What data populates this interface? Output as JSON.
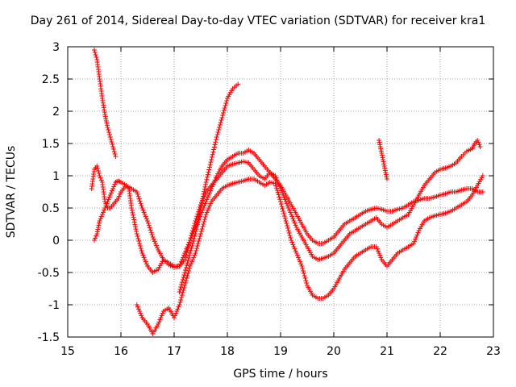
{
  "chart_data": {
    "type": "scatter",
    "title": "Day 261 of 2014, Sidereal Day-to-day VTEC variation (SDTVAR) for receiver kra1",
    "xlabel": "GPS time / hours",
    "ylabel": "SDTVAR / TECUs",
    "xlim": [
      15,
      23
    ],
    "ylim": [
      -1.5,
      3
    ],
    "xticks": [
      "15",
      "16",
      "17",
      "18",
      "19",
      "20",
      "21",
      "22",
      "23"
    ],
    "yticks": [
      "-1.5",
      "-1",
      "-0.5",
      "0",
      "0.5",
      "1",
      "1.5",
      "2",
      "2.5",
      "3"
    ],
    "xtick_values": [
      15,
      16,
      17,
      18,
      19,
      20,
      21,
      22,
      23
    ],
    "ytick_values": [
      -1.5,
      -1,
      -0.5,
      0,
      0.5,
      1,
      1.5,
      2,
      2.5,
      3
    ],
    "grid": true,
    "marker": "+",
    "color": "#ff0000",
    "series": [
      {
        "name": "track-1",
        "points": [
          [
            15.5,
            2.95
          ],
          [
            15.55,
            2.8
          ],
          [
            15.6,
            2.5
          ],
          [
            15.65,
            2.2
          ],
          [
            15.7,
            1.95
          ],
          [
            15.75,
            1.75
          ],
          [
            15.8,
            1.6
          ],
          [
            15.85,
            1.45
          ],
          [
            15.9,
            1.3
          ]
        ]
      },
      {
        "name": "track-2",
        "points": [
          [
            15.5,
            0.0
          ],
          [
            15.55,
            0.1
          ],
          [
            15.6,
            0.3
          ],
          [
            15.65,
            0.4
          ],
          [
            15.7,
            0.5
          ],
          [
            15.75,
            0.6
          ],
          [
            15.8,
            0.7
          ],
          [
            15.85,
            0.8
          ],
          [
            15.9,
            0.9
          ],
          [
            15.95,
            0.92
          ],
          [
            16.0,
            0.9
          ],
          [
            16.1,
            0.85
          ],
          [
            16.15,
            0.8
          ],
          [
            16.2,
            0.5
          ],
          [
            16.3,
            0.1
          ],
          [
            16.4,
            -0.2
          ],
          [
            16.5,
            -0.4
          ],
          [
            16.6,
            -0.5
          ],
          [
            16.7,
            -0.45
          ],
          [
            16.8,
            -0.3
          ],
          [
            16.9,
            -0.35
          ],
          [
            17.0,
            -0.4
          ],
          [
            17.1,
            -0.4
          ],
          [
            17.2,
            -0.3
          ],
          [
            17.3,
            0.0
          ],
          [
            17.4,
            0.3
          ],
          [
            17.5,
            0.55
          ],
          [
            17.6,
            0.75
          ],
          [
            17.7,
            0.85
          ],
          [
            17.8,
            0.95
          ],
          [
            17.9,
            1.05
          ],
          [
            18.0,
            1.15
          ],
          [
            18.1,
            1.18
          ],
          [
            18.2,
            1.2
          ],
          [
            18.3,
            1.22
          ],
          [
            18.4,
            1.2
          ],
          [
            18.5,
            1.1
          ],
          [
            18.6,
            1.0
          ],
          [
            18.7,
            0.95
          ],
          [
            18.8,
            1.05
          ],
          [
            18.9,
            1.0
          ],
          [
            19.0,
            0.8
          ],
          [
            19.1,
            0.6
          ],
          [
            19.2,
            0.4
          ],
          [
            19.3,
            0.2
          ],
          [
            19.4,
            0.05
          ],
          [
            19.5,
            -0.1
          ],
          [
            19.6,
            -0.25
          ],
          [
            19.7,
            -0.3
          ],
          [
            19.8,
            -0.28
          ],
          [
            19.9,
            -0.25
          ],
          [
            20.0,
            -0.2
          ],
          [
            20.1,
            -0.1
          ],
          [
            20.2,
            0.0
          ],
          [
            20.3,
            0.1
          ],
          [
            20.4,
            0.15
          ],
          [
            20.5,
            0.2
          ],
          [
            20.6,
            0.25
          ],
          [
            20.7,
            0.3
          ],
          [
            20.8,
            0.35
          ],
          [
            20.9,
            0.25
          ],
          [
            21.0,
            0.2
          ],
          [
            21.1,
            0.25
          ],
          [
            21.2,
            0.3
          ],
          [
            21.3,
            0.35
          ],
          [
            21.4,
            0.4
          ],
          [
            21.5,
            0.55
          ],
          [
            21.6,
            0.7
          ],
          [
            21.7,
            0.85
          ],
          [
            21.8,
            0.95
          ],
          [
            21.9,
            1.05
          ],
          [
            22.0,
            1.1
          ],
          [
            22.1,
            1.12
          ],
          [
            22.2,
            1.15
          ],
          [
            22.3,
            1.2
          ],
          [
            22.4,
            1.3
          ],
          [
            22.5,
            1.38
          ],
          [
            22.6,
            1.42
          ],
          [
            22.65,
            1.5
          ],
          [
            22.7,
            1.55
          ],
          [
            22.75,
            1.45
          ]
        ]
      },
      {
        "name": "track-3",
        "points": [
          [
            15.45,
            0.8
          ],
          [
            15.5,
            1.1
          ],
          [
            15.55,
            1.15
          ],
          [
            15.6,
            1.0
          ],
          [
            15.65,
            0.9
          ],
          [
            15.7,
            0.6
          ],
          [
            15.75,
            0.5
          ],
          [
            15.8,
            0.5
          ],
          [
            15.85,
            0.55
          ],
          [
            15.9,
            0.6
          ],
          [
            15.95,
            0.65
          ],
          [
            16.0,
            0.75
          ],
          [
            16.1,
            0.85
          ],
          [
            16.2,
            0.8
          ],
          [
            16.3,
            0.75
          ],
          [
            16.4,
            0.5
          ],
          [
            16.5,
            0.3
          ],
          [
            16.6,
            0.05
          ],
          [
            16.7,
            -0.15
          ],
          [
            16.8,
            -0.3
          ],
          [
            16.9,
            -0.38
          ],
          [
            17.0,
            -0.42
          ],
          [
            17.1,
            -0.4
          ],
          [
            17.2,
            -0.2
          ],
          [
            17.3,
            0.0
          ],
          [
            17.4,
            0.2
          ],
          [
            17.5,
            0.4
          ],
          [
            17.6,
            0.6
          ],
          [
            17.7,
            0.8
          ],
          [
            17.8,
            1.0
          ],
          [
            17.9,
            1.15
          ],
          [
            18.0,
            1.25
          ],
          [
            18.1,
            1.3
          ],
          [
            18.2,
            1.35
          ],
          [
            18.3,
            1.35
          ],
          [
            18.4,
            1.4
          ],
          [
            18.5,
            1.35
          ],
          [
            18.6,
            1.25
          ],
          [
            18.7,
            1.15
          ],
          [
            18.8,
            1.05
          ],
          [
            18.9,
            0.95
          ],
          [
            19.0,
            0.85
          ],
          [
            19.1,
            0.7
          ],
          [
            19.2,
            0.55
          ],
          [
            19.3,
            0.4
          ],
          [
            19.4,
            0.25
          ],
          [
            19.5,
            0.1
          ],
          [
            19.6,
            0.0
          ],
          [
            19.7,
            -0.05
          ],
          [
            19.8,
            -0.05
          ],
          [
            19.9,
            0.0
          ],
          [
            20.0,
            0.05
          ],
          [
            20.1,
            0.15
          ],
          [
            20.2,
            0.25
          ],
          [
            20.3,
            0.3
          ],
          [
            20.4,
            0.35
          ],
          [
            20.5,
            0.4
          ],
          [
            20.6,
            0.45
          ],
          [
            20.7,
            0.48
          ],
          [
            20.8,
            0.5
          ],
          [
            20.9,
            0.48
          ],
          [
            21.0,
            0.45
          ],
          [
            21.1,
            0.45
          ],
          [
            21.2,
            0.48
          ],
          [
            21.3,
            0.5
          ],
          [
            21.4,
            0.55
          ],
          [
            21.5,
            0.6
          ],
          [
            21.6,
            0.62
          ],
          [
            21.7,
            0.65
          ],
          [
            21.8,
            0.65
          ],
          [
            21.9,
            0.67
          ],
          [
            22.0,
            0.7
          ],
          [
            22.1,
            0.72
          ],
          [
            22.2,
            0.75
          ],
          [
            22.3,
            0.75
          ],
          [
            22.4,
            0.78
          ],
          [
            22.5,
            0.8
          ],
          [
            22.6,
            0.8
          ],
          [
            22.7,
            0.75
          ],
          [
            22.8,
            0.75
          ]
        ]
      },
      {
        "name": "track-4",
        "points": [
          [
            16.3,
            -1.0
          ],
          [
            16.4,
            -1.2
          ],
          [
            16.5,
            -1.3
          ],
          [
            16.6,
            -1.45
          ],
          [
            16.7,
            -1.3
          ],
          [
            16.8,
            -1.1
          ],
          [
            16.9,
            -1.05
          ],
          [
            17.0,
            -1.2
          ],
          [
            17.1,
            -1.0
          ],
          [
            17.2,
            -0.7
          ],
          [
            17.3,
            -0.4
          ],
          [
            17.4,
            -0.2
          ],
          [
            17.5,
            0.1
          ],
          [
            17.6,
            0.4
          ],
          [
            17.7,
            0.6
          ],
          [
            17.8,
            0.7
          ],
          [
            17.9,
            0.8
          ],
          [
            18.0,
            0.85
          ],
          [
            18.1,
            0.88
          ],
          [
            18.2,
            0.9
          ],
          [
            18.3,
            0.92
          ],
          [
            18.4,
            0.95
          ],
          [
            18.5,
            0.95
          ],
          [
            18.6,
            0.9
          ],
          [
            18.7,
            0.85
          ],
          [
            18.8,
            0.9
          ],
          [
            18.9,
            0.88
          ],
          [
            19.0,
            0.6
          ],
          [
            19.1,
            0.3
          ],
          [
            19.2,
            0.0
          ],
          [
            19.3,
            -0.2
          ],
          [
            19.4,
            -0.4
          ],
          [
            19.5,
            -0.7
          ],
          [
            19.6,
            -0.85
          ],
          [
            19.7,
            -0.9
          ],
          [
            19.8,
            -0.9
          ],
          [
            19.9,
            -0.85
          ],
          [
            20.0,
            -0.75
          ],
          [
            20.1,
            -0.6
          ],
          [
            20.2,
            -0.45
          ],
          [
            20.3,
            -0.35
          ],
          [
            20.4,
            -0.25
          ],
          [
            20.5,
            -0.2
          ],
          [
            20.6,
            -0.15
          ],
          [
            20.7,
            -0.1
          ],
          [
            20.8,
            -0.1
          ],
          [
            20.9,
            -0.3
          ],
          [
            21.0,
            -0.4
          ],
          [
            21.1,
            -0.3
          ],
          [
            21.2,
            -0.2
          ],
          [
            21.3,
            -0.15
          ],
          [
            21.4,
            -0.1
          ],
          [
            21.5,
            -0.05
          ],
          [
            21.6,
            0.15
          ],
          [
            21.7,
            0.3
          ],
          [
            21.8,
            0.35
          ],
          [
            21.9,
            0.38
          ],
          [
            22.0,
            0.4
          ],
          [
            22.1,
            0.42
          ],
          [
            22.2,
            0.45
          ],
          [
            22.3,
            0.5
          ],
          [
            22.4,
            0.55
          ],
          [
            22.5,
            0.6
          ],
          [
            22.6,
            0.7
          ],
          [
            22.7,
            0.85
          ],
          [
            22.8,
            1.0
          ]
        ]
      },
      {
        "name": "track-5",
        "points": [
          [
            17.1,
            -0.8
          ],
          [
            17.2,
            -0.5
          ],
          [
            17.3,
            -0.2
          ],
          [
            17.4,
            0.1
          ],
          [
            17.5,
            0.5
          ],
          [
            17.6,
            0.9
          ],
          [
            17.7,
            1.25
          ],
          [
            17.8,
            1.6
          ],
          [
            17.9,
            1.9
          ],
          [
            18.0,
            2.2
          ],
          [
            18.1,
            2.35
          ],
          [
            18.2,
            2.42
          ]
        ]
      },
      {
        "name": "track-6",
        "points": [
          [
            20.85,
            1.55
          ],
          [
            20.9,
            1.35
          ],
          [
            20.95,
            1.15
          ],
          [
            21.0,
            0.95
          ]
        ]
      }
    ]
  }
}
